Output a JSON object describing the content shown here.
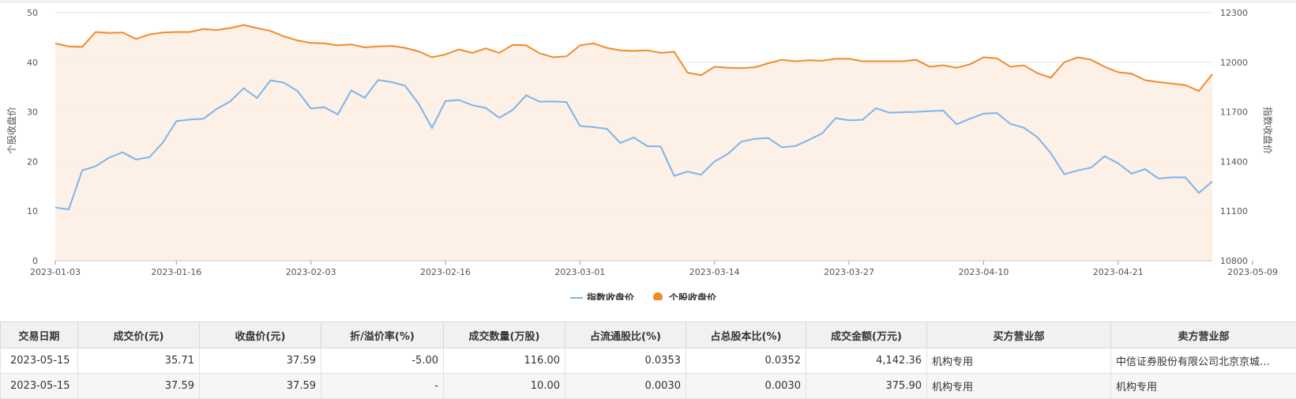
{
  "colors": {
    "index_line": "#7cb5ec",
    "stock_line": "#f28a2b",
    "stock_area": "#fdeee3",
    "grid": "#e6e6e6"
  },
  "chart_data": {
    "type": "line",
    "left_axis": {
      "title": "个股收盘价",
      "ylim": [
        0,
        50
      ],
      "ticks": [
        0,
        10,
        20,
        30,
        40,
        50
      ]
    },
    "right_axis": {
      "title": "指数收盘价",
      "ylim": [
        10800,
        12300
      ],
      "ticks": [
        10800,
        11100,
        11400,
        11700,
        12000,
        12300
      ]
    },
    "x_ticks": [
      {
        "label": "2023-01-03",
        "index": 0
      },
      {
        "label": "2023-01-16",
        "index": 9
      },
      {
        "label": "2023-02-03",
        "index": 19
      },
      {
        "label": "2023-02-16",
        "index": 29
      },
      {
        "label": "2023-03-01",
        "index": 39
      },
      {
        "label": "2023-03-14",
        "index": 49
      },
      {
        "label": "2023-03-27",
        "index": 59
      },
      {
        "label": "2023-04-10",
        "index": 69
      },
      {
        "label": "2023-04-21",
        "index": 79
      },
      {
        "label": "2023-05-09",
        "index": 89
      }
    ],
    "legend": [
      "指数收盘价",
      "个股收盘价"
    ],
    "series": [
      {
        "name": "指数收盘价",
        "axis": "right",
        "values": [
          11122,
          11110,
          11346,
          11372,
          11423,
          11456,
          11412,
          11426,
          11515,
          11644,
          11653,
          11658,
          11718,
          11763,
          11843,
          11784,
          11891,
          11876,
          11827,
          11720,
          11728,
          11684,
          11830,
          11785,
          11893,
          11880,
          11858,
          11750,
          11603,
          11765,
          11772,
          11740,
          11724,
          11664,
          11712,
          11800,
          11762,
          11763,
          11759,
          11614,
          11608,
          11598,
          11512,
          11545,
          11493,
          11491,
          11313,
          11339,
          11320,
          11400,
          11446,
          11520,
          11537,
          11542,
          11486,
          11493,
          11530,
          11570,
          11662,
          11649,
          11652,
          11722,
          11695,
          11698,
          11700,
          11705,
          11708,
          11625,
          11659,
          11690,
          11693,
          11627,
          11604,
          11547,
          11450,
          11323,
          11346,
          11363,
          11432,
          11389,
          11327,
          11354,
          11297,
          11304,
          11304,
          11210,
          11280
        ]
      },
      {
        "name": "个股收盘价",
        "axis": "left",
        "values": [
          43.8,
          43.2,
          43.1,
          46.1,
          45.9,
          46.0,
          44.7,
          45.6,
          46.0,
          46.1,
          46.1,
          46.7,
          46.5,
          46.9,
          47.5,
          46.9,
          46.3,
          45.2,
          44.4,
          43.9,
          43.8,
          43.4,
          43.6,
          43.0,
          43.2,
          43.3,
          42.9,
          42.2,
          41.0,
          41.6,
          42.6,
          41.9,
          42.8,
          41.9,
          43.5,
          43.4,
          41.8,
          41.0,
          41.2,
          43.4,
          43.8,
          42.9,
          42.4,
          42.3,
          42.4,
          41.9,
          42.1,
          37.9,
          37.4,
          39.1,
          38.9,
          38.8,
          39.0,
          39.8,
          40.5,
          40.2,
          40.4,
          40.3,
          40.7,
          40.7,
          40.2,
          40.2,
          40.2,
          40.2,
          40.5,
          39.1,
          39.4,
          38.9,
          39.6,
          41.0,
          40.8,
          39.1,
          39.4,
          37.8,
          36.9,
          40.0,
          41.0,
          40.5,
          39.1,
          38.0,
          37.7,
          36.4,
          36.0,
          35.7,
          35.4,
          34.2,
          37.59
        ]
      }
    ]
  },
  "table": {
    "headers": [
      "交易日期",
      "成交价(元)",
      "收盘价(元)",
      "折/溢价率(%)",
      "成交数量(万股)",
      "占流通股比(%)",
      "占总股本比(%)",
      "成交金额(万元)",
      "买方营业部",
      "卖方营业部"
    ],
    "rows": [
      [
        "2023-05-15",
        "35.71",
        "37.59",
        "-5.00",
        "116.00",
        "0.0353",
        "0.0352",
        "4,142.36",
        "机构专用",
        "中信证券股份有限公司北京京城…"
      ],
      [
        "2023-05-15",
        "37.59",
        "37.59",
        "-",
        "10.00",
        "0.0030",
        "0.0030",
        "375.90",
        "机构专用",
        "机构专用"
      ]
    ]
  }
}
